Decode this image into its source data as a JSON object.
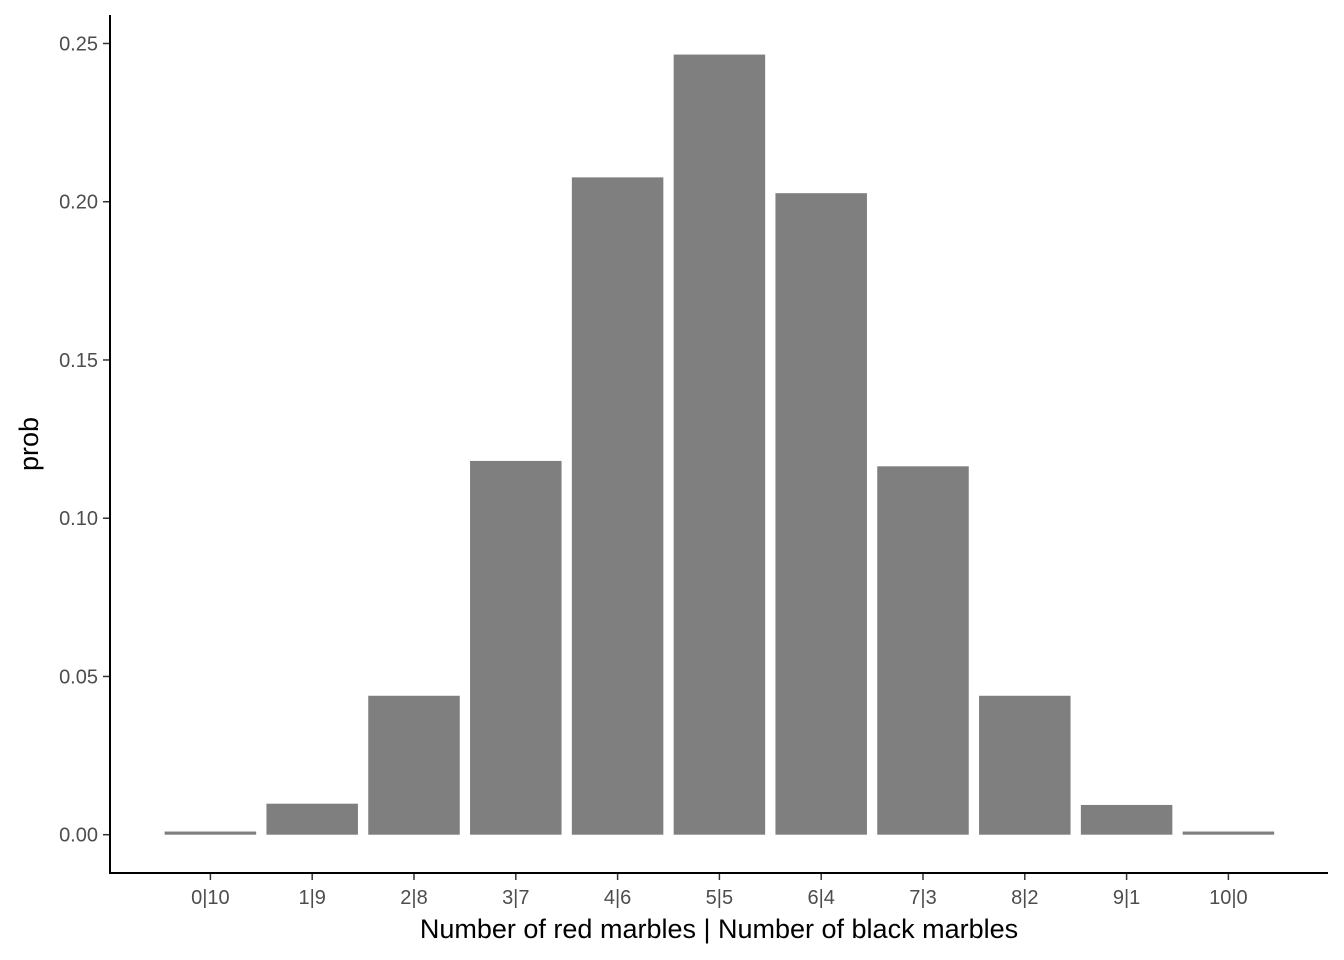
{
  "chart_data": {
    "type": "bar",
    "title": "",
    "xlabel": "Number of red marbles | Number of black marbles",
    "ylabel": "prob",
    "categories": [
      "0|10",
      "1|9",
      "2|8",
      "3|7",
      "4|6",
      "5|5",
      "6|4",
      "7|3",
      "8|2",
      "9|1",
      "10|0"
    ],
    "values": [
      0.001,
      0.0098,
      0.0439,
      0.1181,
      0.2077,
      0.2465,
      0.2027,
      0.1164,
      0.0439,
      0.0094,
      0.001
    ],
    "y_ticks": [
      "0.00",
      "0.05",
      "0.10",
      "0.15",
      "0.20",
      "0.25"
    ],
    "ylim": [
      -0.0121,
      0.259
    ],
    "grid": false,
    "legend": "none",
    "colors": {
      "bar": "#7f7f7f",
      "axis": "#000000",
      "tick_label": "#4d4d4d"
    }
  }
}
